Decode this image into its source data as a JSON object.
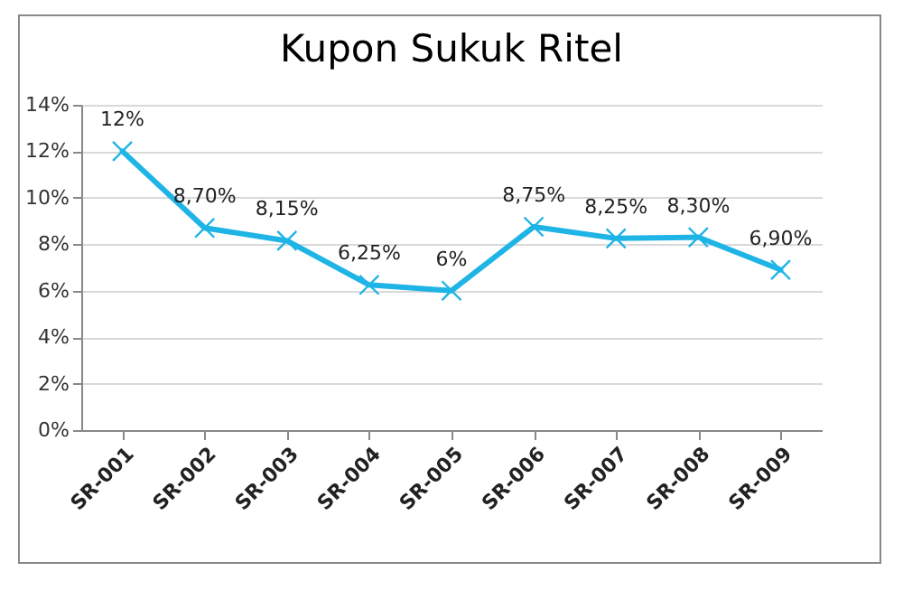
{
  "chart_data": {
    "type": "line",
    "title": "Kupon Sukuk Ritel",
    "categories": [
      "SR-001",
      "SR-002",
      "SR-003",
      "SR-004",
      "SR-005",
      "SR-006",
      "SR-007",
      "SR-008",
      "SR-009"
    ],
    "series": [
      {
        "color": "#1fb4e6",
        "values": [
          12,
          8.7,
          8.15,
          6.25,
          6,
          8.75,
          8.25,
          8.3,
          6.9
        ],
        "value_labels": [
          "12%",
          "8,70%",
          "8,15%",
          "6,25%",
          "6%",
          "8,75%",
          "8,25%",
          "8,30%",
          "6,90%"
        ]
      }
    ],
    "ylim": [
      0,
      14
    ],
    "yticks": [
      {
        "value": 0,
        "label": "0%"
      },
      {
        "value": 2,
        "label": "2%"
      },
      {
        "value": 4,
        "label": "4%"
      },
      {
        "value": 6,
        "label": "6%"
      },
      {
        "value": 8,
        "label": "8%"
      },
      {
        "value": 10,
        "label": "10%"
      },
      {
        "value": 12,
        "label": "12%"
      },
      {
        "value": 14,
        "label": "14%"
      }
    ],
    "grid": "y",
    "marker": "cross",
    "line_style": "solid"
  }
}
